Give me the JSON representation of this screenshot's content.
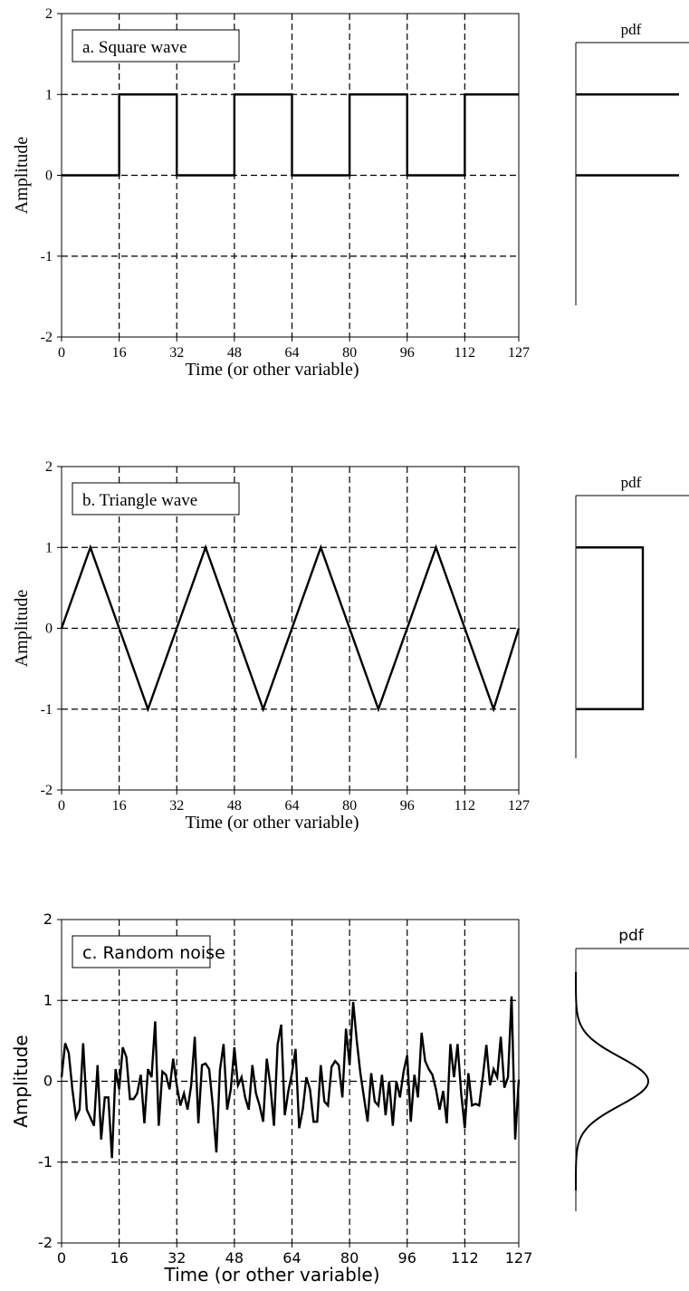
{
  "colors": {
    "ink": "#000000",
    "background": "#ffffff"
  },
  "chart_data": [
    {
      "type": "line",
      "title": "a. Square wave",
      "xlabel": "Time (or other variable)",
      "ylabel": "Amplitude",
      "xlim": [
        0,
        127
      ],
      "ylim": [
        -2,
        2
      ],
      "x_ticks": [
        "0",
        "16",
        "32",
        "48",
        "64",
        "80",
        "96",
        "112",
        "127"
      ],
      "y_ticks": [
        "-2",
        "-1",
        "0",
        "1",
        "2"
      ],
      "grid": "dashed",
      "font": "serif",
      "x": [
        0,
        16,
        16,
        32,
        32,
        48,
        48,
        64,
        64,
        80,
        80,
        96,
        96,
        112,
        112,
        127
      ],
      "y": [
        0,
        0,
        1,
        1,
        0,
        0,
        1,
        1,
        0,
        0,
        1,
        1,
        0,
        0,
        1,
        1
      ],
      "pdf": {
        "title": "pdf",
        "type": "two-level",
        "levels": [
          1,
          0
        ]
      }
    },
    {
      "type": "line",
      "title": "b. Triangle wave",
      "xlabel": "Time (or other variable)",
      "ylabel": "Amplitude",
      "xlim": [
        0,
        127
      ],
      "ylim": [
        -2,
        2
      ],
      "x_ticks": [
        "0",
        "16",
        "32",
        "48",
        "64",
        "80",
        "96",
        "112",
        "127"
      ],
      "y_ticks": [
        "-2",
        "-1",
        "0",
        "1",
        "2"
      ],
      "grid": "dashed",
      "font": "serif",
      "x": [
        0,
        8,
        24,
        40,
        56,
        72,
        88,
        104,
        120,
        127
      ],
      "y": [
        0,
        1,
        -1,
        1,
        -1,
        1,
        -1,
        1,
        -1,
        0
      ],
      "pdf": {
        "title": "pdf",
        "type": "uniform",
        "range": [
          -1,
          1
        ]
      }
    },
    {
      "type": "line",
      "title": "c. Random noise",
      "xlabel": "Time (or other variable)",
      "ylabel": "Amplitude",
      "xlim": [
        0,
        127
      ],
      "ylim": [
        -2,
        2
      ],
      "x_ticks": [
        "0",
        "16",
        "32",
        "48",
        "64",
        "80",
        "96",
        "112",
        "127"
      ],
      "y_ticks": [
        "-2",
        "-1",
        "0",
        "1",
        "2"
      ],
      "grid": "dashed",
      "font": "sans",
      "x": [
        0,
        1,
        2,
        3,
        4,
        5,
        6,
        7,
        8,
        9,
        10,
        11,
        12,
        13,
        14,
        15,
        16,
        17,
        18,
        19,
        20,
        21,
        22,
        23,
        24,
        25,
        26,
        27,
        28,
        29,
        30,
        31,
        32,
        33,
        34,
        35,
        36,
        37,
        38,
        39,
        40,
        41,
        42,
        43,
        44,
        45,
        46,
        47,
        48,
        49,
        50,
        51,
        52,
        53,
        54,
        55,
        56,
        57,
        58,
        59,
        60,
        61,
        62,
        63,
        64,
        65,
        66,
        67,
        68,
        69,
        70,
        71,
        72,
        73,
        74,
        75,
        76,
        77,
        78,
        79,
        80,
        81,
        82,
        83,
        84,
        85,
        86,
        87,
        88,
        89,
        90,
        91,
        92,
        93,
        94,
        95,
        96,
        97,
        98,
        99,
        100,
        101,
        102,
        103,
        104,
        105,
        106,
        107,
        108,
        109,
        110,
        111,
        112,
        113,
        114,
        115,
        116,
        117,
        118,
        119,
        120,
        121,
        122,
        123,
        124,
        125,
        126,
        127
      ],
      "y": [
        0.05,
        0.47,
        0.35,
        -0.1,
        -0.45,
        -0.35,
        0.47,
        -0.35,
        -0.45,
        -0.55,
        0.2,
        -0.72,
        -0.2,
        -0.2,
        -0.95,
        0.15,
        -0.1,
        0.42,
        0.3,
        -0.22,
        -0.22,
        -0.15,
        0.08,
        -0.52,
        0.15,
        0.05,
        0.74,
        -0.55,
        0.12,
        0.08,
        -0.1,
        0.28,
        -0.05,
        -0.3,
        -0.15,
        -0.35,
        -0.05,
        0.55,
        -0.52,
        0.2,
        0.22,
        0.15,
        -0.3,
        -0.88,
        0.14,
        0.46,
        -0.35,
        -0.1,
        0.42,
        -0.05,
        0.05,
        -0.2,
        -0.35,
        0.2,
        -0.15,
        -0.3,
        -0.5,
        0.28,
        -0.05,
        -0.55,
        0.45,
        0.7,
        -0.42,
        -0.12,
        0.1,
        0.4,
        -0.58,
        -0.35,
        0.05,
        -0.1,
        -0.5,
        -0.5,
        0.2,
        -0.25,
        -0.3,
        0.18,
        0.25,
        0.2,
        -0.2,
        0.65,
        0.2,
        0.98,
        0.5,
        0.1,
        -0.2,
        -0.5,
        0.1,
        -0.25,
        -0.3,
        0.08,
        -0.42,
        0.0,
        -0.55,
        0.0,
        -0.2,
        0.12,
        0.32,
        -0.5,
        0.08,
        -0.2,
        0.6,
        0.25,
        0.15,
        0.08,
        -0.1,
        -0.35,
        -0.12,
        -0.52,
        0.46,
        0.05,
        0.46,
        -0.15,
        -0.58,
        0.1,
        -0.3,
        -0.28,
        -0.3,
        0.05,
        0.45,
        -0.05,
        0.15,
        0.05,
        0.55,
        -0.08,
        0.05,
        1.05,
        -0.72,
        0.02
      ],
      "pdf": {
        "title": "pdf",
        "type": "gaussian",
        "mean": 0,
        "sd": 0.3
      }
    }
  ]
}
